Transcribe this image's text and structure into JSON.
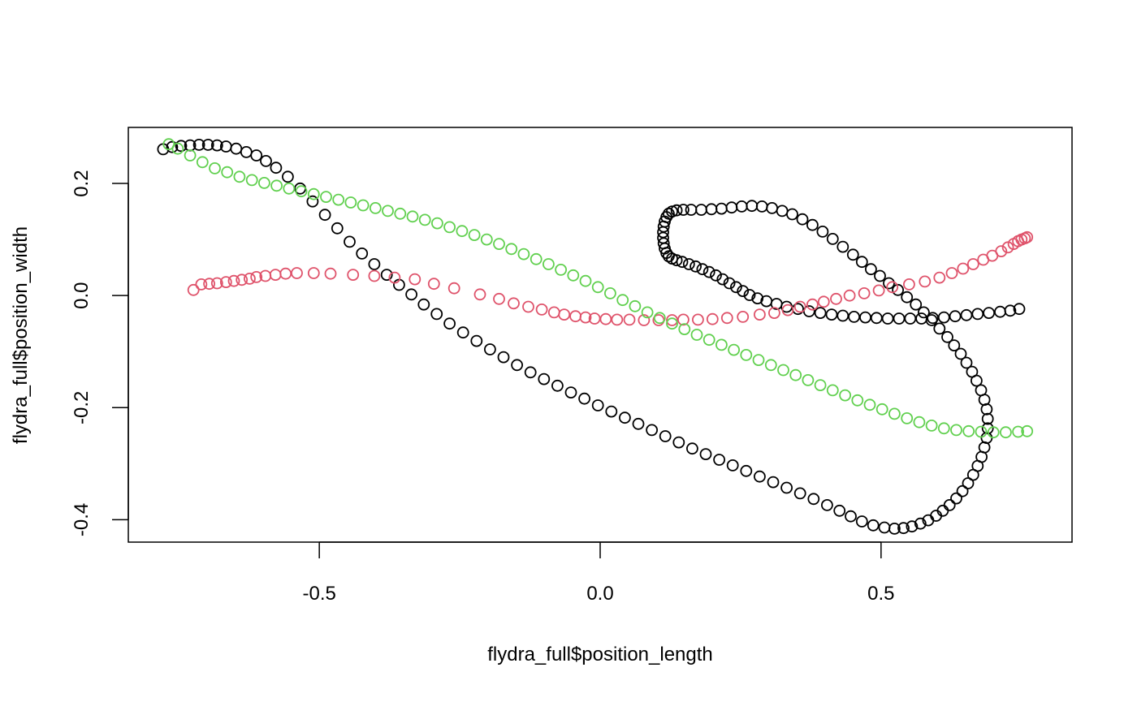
{
  "chart_data": {
    "type": "scatter",
    "title": "",
    "xlabel": "flydra_full$position_length",
    "ylabel": "flydra_full$position_width",
    "xlim": [
      -0.84,
      0.84
    ],
    "ylim": [
      -0.44,
      0.3
    ],
    "xticks": [
      -0.5,
      0.0,
      0.5
    ],
    "xtick_labels": [
      "-0.5",
      "0.0",
      "0.5"
    ],
    "yticks": [
      -0.4,
      -0.2,
      0.0,
      0.2
    ],
    "ytick_labels": [
      "-0.4",
      "-0.2",
      "0.0",
      "0.2"
    ],
    "marker": "open-circle",
    "grid": false,
    "legend": "none",
    "series": [
      {
        "color": "#000000",
        "points": [
          [
            -0.778,
            0.261
          ],
          [
            -0.762,
            0.265
          ],
          [
            -0.746,
            0.267
          ],
          [
            -0.73,
            0.268
          ],
          [
            -0.714,
            0.269
          ],
          [
            -0.698,
            0.269
          ],
          [
            -0.682,
            0.268
          ],
          [
            -0.666,
            0.266
          ],
          [
            -0.648,
            0.262
          ],
          [
            -0.63,
            0.256
          ],
          [
            -0.612,
            0.25
          ],
          [
            -0.595,
            0.24
          ],
          [
            -0.577,
            0.228
          ],
          [
            -0.556,
            0.212
          ],
          [
            -0.534,
            0.191
          ],
          [
            -0.512,
            0.168
          ],
          [
            -0.49,
            0.144
          ],
          [
            -0.468,
            0.12
          ],
          [
            -0.446,
            0.096
          ],
          [
            -0.424,
            0.075
          ],
          [
            -0.402,
            0.056
          ],
          [
            -0.38,
            0.037
          ],
          [
            -0.358,
            0.019
          ],
          [
            -0.336,
            0.002
          ],
          [
            -0.314,
            -0.016
          ],
          [
            -0.291,
            -0.033
          ],
          [
            -0.268,
            -0.05
          ],
          [
            -0.244,
            -0.066
          ],
          [
            -0.22,
            -0.081
          ],
          [
            -0.196,
            -0.096
          ],
          [
            -0.172,
            -0.11
          ],
          [
            -0.148,
            -0.124
          ],
          [
            -0.124,
            -0.137
          ],
          [
            -0.1,
            -0.149
          ],
          [
            -0.076,
            -0.161
          ],
          [
            -0.052,
            -0.173
          ],
          [
            -0.028,
            -0.184
          ],
          [
            -0.004,
            -0.196
          ],
          [
            0.02,
            -0.207
          ],
          [
            0.044,
            -0.218
          ],
          [
            0.068,
            -0.229
          ],
          [
            0.092,
            -0.24
          ],
          [
            0.116,
            -0.251
          ],
          [
            0.14,
            -0.262
          ],
          [
            0.164,
            -0.273
          ],
          [
            0.188,
            -0.283
          ],
          [
            0.212,
            -0.293
          ],
          [
            0.236,
            -0.303
          ],
          [
            0.26,
            -0.313
          ],
          [
            0.284,
            -0.323
          ],
          [
            0.308,
            -0.333
          ],
          [
            0.332,
            -0.343
          ],
          [
            0.356,
            -0.353
          ],
          [
            0.38,
            -0.363
          ],
          [
            0.404,
            -0.374
          ],
          [
            0.426,
            -0.384
          ],
          [
            0.446,
            -0.394
          ],
          [
            0.466,
            -0.403
          ],
          [
            0.486,
            -0.41
          ],
          [
            0.506,
            -0.414
          ],
          [
            0.524,
            -0.416
          ],
          [
            0.54,
            -0.415
          ],
          [
            0.555,
            -0.412
          ],
          [
            0.57,
            -0.407
          ],
          [
            0.584,
            -0.401
          ],
          [
            0.598,
            -0.393
          ],
          [
            0.61,
            -0.384
          ],
          [
            0.622,
            -0.374
          ],
          [
            0.634,
            -0.362
          ],
          [
            0.645,
            -0.349
          ],
          [
            0.655,
            -0.335
          ],
          [
            0.664,
            -0.32
          ],
          [
            0.672,
            -0.304
          ],
          [
            0.679,
            -0.288
          ],
          [
            0.684,
            -0.271
          ],
          [
            0.688,
            -0.254
          ],
          [
            0.69,
            -0.237
          ],
          [
            0.69,
            -0.22
          ],
          [
            0.688,
            -0.203
          ],
          [
            0.684,
            -0.186
          ],
          [
            0.678,
            -0.169
          ],
          [
            0.67,
            -0.152
          ],
          [
            0.662,
            -0.136
          ],
          [
            0.652,
            -0.12
          ],
          [
            0.642,
            -0.104
          ],
          [
            0.63,
            -0.089
          ],
          [
            0.618,
            -0.074
          ],
          [
            0.604,
            -0.059
          ],
          [
            0.59,
            -0.044
          ],
          [
            0.576,
            -0.03
          ],
          [
            0.562,
            -0.016
          ],
          [
            0.546,
            -0.003
          ],
          [
            0.53,
            0.01
          ],
          [
            0.514,
            0.022
          ],
          [
            0.498,
            0.035
          ],
          [
            0.482,
            0.047
          ],
          [
            0.466,
            0.06
          ],
          [
            0.45,
            0.073
          ],
          [
            0.432,
            0.087
          ],
          [
            0.414,
            0.101
          ],
          [
            0.396,
            0.114
          ],
          [
            0.378,
            0.126
          ],
          [
            0.36,
            0.136
          ],
          [
            0.342,
            0.145
          ],
          [
            0.324,
            0.151
          ],
          [
            0.306,
            0.156
          ],
          [
            0.288,
            0.159
          ],
          [
            0.27,
            0.16
          ],
          [
            0.252,
            0.159
          ],
          [
            0.234,
            0.157
          ],
          [
            0.216,
            0.155
          ],
          [
            0.198,
            0.154
          ],
          [
            0.18,
            0.153
          ],
          [
            0.162,
            0.153
          ],
          [
            0.148,
            0.153
          ],
          [
            0.136,
            0.152
          ],
          [
            0.128,
            0.15
          ],
          [
            0.122,
            0.146
          ],
          [
            0.118,
            0.14
          ],
          [
            0.115,
            0.132
          ],
          [
            0.113,
            0.123
          ],
          [
            0.112,
            0.113
          ],
          [
            0.112,
            0.103
          ],
          [
            0.113,
            0.093
          ],
          [
            0.115,
            0.084
          ],
          [
            0.118,
            0.076
          ],
          [
            0.122,
            0.07
          ],
          [
            0.128,
            0.066
          ],
          [
            0.136,
            0.063
          ],
          [
            0.146,
            0.06
          ],
          [
            0.158,
            0.056
          ],
          [
            0.17,
            0.052
          ],
          [
            0.182,
            0.047
          ],
          [
            0.194,
            0.042
          ],
          [
            0.206,
            0.036
          ],
          [
            0.218,
            0.029
          ],
          [
            0.23,
            0.022
          ],
          [
            0.242,
            0.015
          ],
          [
            0.254,
            0.008
          ],
          [
            0.266,
            0.001
          ],
          [
            0.28,
            -0.005
          ],
          [
            0.296,
            -0.01
          ],
          [
            0.314,
            -0.015
          ],
          [
            0.332,
            -0.02
          ],
          [
            0.352,
            -0.024
          ],
          [
            0.372,
            -0.028
          ],
          [
            0.392,
            -0.031
          ],
          [
            0.412,
            -0.034
          ],
          [
            0.432,
            -0.036
          ],
          [
            0.452,
            -0.038
          ],
          [
            0.472,
            -0.039
          ],
          [
            0.492,
            -0.04
          ],
          [
            0.512,
            -0.041
          ],
          [
            0.532,
            -0.041
          ],
          [
            0.552,
            -0.041
          ],
          [
            0.572,
            -0.041
          ],
          [
            0.592,
            -0.04
          ],
          [
            0.612,
            -0.039
          ],
          [
            0.632,
            -0.037
          ],
          [
            0.652,
            -0.035
          ],
          [
            0.672,
            -0.033
          ],
          [
            0.692,
            -0.031
          ],
          [
            0.712,
            -0.029
          ],
          [
            0.73,
            -0.027
          ],
          [
            0.746,
            -0.024
          ]
        ]
      },
      {
        "color": "#DF536B",
        "points": [
          [
            -0.724,
            0.01
          ],
          [
            -0.71,
            0.02
          ],
          [
            -0.696,
            0.021
          ],
          [
            -0.682,
            0.022
          ],
          [
            -0.666,
            0.024
          ],
          [
            -0.652,
            0.026
          ],
          [
            -0.638,
            0.028
          ],
          [
            -0.624,
            0.03
          ],
          [
            -0.612,
            0.033
          ],
          [
            -0.596,
            0.035
          ],
          [
            -0.578,
            0.037
          ],
          [
            -0.56,
            0.039
          ],
          [
            -0.54,
            0.04
          ],
          [
            -0.51,
            0.04
          ],
          [
            -0.48,
            0.039
          ],
          [
            -0.44,
            0.037
          ],
          [
            -0.402,
            0.035
          ],
          [
            -0.366,
            0.032
          ],
          [
            -0.33,
            0.029
          ],
          [
            -0.296,
            0.021
          ],
          [
            -0.26,
            0.013
          ],
          [
            -0.214,
            0.002
          ],
          [
            -0.18,
            -0.006
          ],
          [
            -0.154,
            -0.014
          ],
          [
            -0.128,
            -0.02
          ],
          [
            -0.104,
            -0.025
          ],
          [
            -0.082,
            -0.03
          ],
          [
            -0.064,
            -0.034
          ],
          [
            -0.044,
            -0.037
          ],
          [
            -0.026,
            -0.039
          ],
          [
            -0.01,
            -0.041
          ],
          [
            0.01,
            -0.042
          ],
          [
            0.03,
            -0.043
          ],
          [
            0.052,
            -0.043
          ],
          [
            0.078,
            -0.044
          ],
          [
            0.104,
            -0.044
          ],
          [
            0.128,
            -0.044
          ],
          [
            0.148,
            -0.043
          ],
          [
            0.174,
            -0.043
          ],
          [
            0.2,
            -0.042
          ],
          [
            0.226,
            -0.04
          ],
          [
            0.254,
            -0.038
          ],
          [
            0.284,
            -0.034
          ],
          [
            0.31,
            -0.031
          ],
          [
            0.334,
            -0.026
          ],
          [
            0.356,
            -0.02
          ],
          [
            0.378,
            -0.016
          ],
          [
            0.398,
            -0.011
          ],
          [
            0.42,
            -0.006
          ],
          [
            0.444,
            0.0
          ],
          [
            0.47,
            0.004
          ],
          [
            0.496,
            0.009
          ],
          [
            0.52,
            0.015
          ],
          [
            0.55,
            0.02
          ],
          [
            0.578,
            0.025
          ],
          [
            0.604,
            0.032
          ],
          [
            0.626,
            0.04
          ],
          [
            0.646,
            0.048
          ],
          [
            0.664,
            0.056
          ],
          [
            0.682,
            0.064
          ],
          [
            0.698,
            0.071
          ],
          [
            0.714,
            0.079
          ],
          [
            0.726,
            0.086
          ],
          [
            0.736,
            0.092
          ],
          [
            0.744,
            0.097
          ],
          [
            0.75,
            0.1
          ],
          [
            0.756,
            0.102
          ],
          [
            0.76,
            0.104
          ]
        ]
      },
      {
        "color": "#61D04F",
        "points": [
          [
            -0.768,
            0.27
          ],
          [
            -0.752,
            0.262
          ],
          [
            -0.73,
            0.25
          ],
          [
            -0.708,
            0.238
          ],
          [
            -0.686,
            0.227
          ],
          [
            -0.664,
            0.22
          ],
          [
            -0.642,
            0.212
          ],
          [
            -0.62,
            0.206
          ],
          [
            -0.598,
            0.201
          ],
          [
            -0.576,
            0.196
          ],
          [
            -0.554,
            0.191
          ],
          [
            -0.532,
            0.186
          ],
          [
            -0.51,
            0.181
          ],
          [
            -0.488,
            0.176
          ],
          [
            -0.466,
            0.171
          ],
          [
            -0.444,
            0.166
          ],
          [
            -0.422,
            0.161
          ],
          [
            -0.4,
            0.156
          ],
          [
            -0.378,
            0.151
          ],
          [
            -0.356,
            0.146
          ],
          [
            -0.334,
            0.141
          ],
          [
            -0.312,
            0.135
          ],
          [
            -0.29,
            0.129
          ],
          [
            -0.268,
            0.122
          ],
          [
            -0.246,
            0.115
          ],
          [
            -0.224,
            0.108
          ],
          [
            -0.202,
            0.1
          ],
          [
            -0.18,
            0.092
          ],
          [
            -0.158,
            0.083
          ],
          [
            -0.136,
            0.074
          ],
          [
            -0.114,
            0.065
          ],
          [
            -0.092,
            0.056
          ],
          [
            -0.07,
            0.046
          ],
          [
            -0.048,
            0.036
          ],
          [
            -0.026,
            0.026
          ],
          [
            -0.004,
            0.015
          ],
          [
            0.018,
            0.004
          ],
          [
            0.04,
            -0.008
          ],
          [
            0.062,
            -0.019
          ],
          [
            0.084,
            -0.03
          ],
          [
            0.106,
            -0.04
          ],
          [
            0.128,
            -0.05
          ],
          [
            0.15,
            -0.06
          ],
          [
            0.172,
            -0.07
          ],
          [
            0.194,
            -0.079
          ],
          [
            0.216,
            -0.088
          ],
          [
            0.238,
            -0.097
          ],
          [
            0.26,
            -0.106
          ],
          [
            0.282,
            -0.115
          ],
          [
            0.304,
            -0.124
          ],
          [
            0.326,
            -0.133
          ],
          [
            0.348,
            -0.142
          ],
          [
            0.37,
            -0.151
          ],
          [
            0.392,
            -0.16
          ],
          [
            0.414,
            -0.169
          ],
          [
            0.436,
            -0.178
          ],
          [
            0.458,
            -0.187
          ],
          [
            0.48,
            -0.195
          ],
          [
            0.502,
            -0.203
          ],
          [
            0.524,
            -0.211
          ],
          [
            0.546,
            -0.219
          ],
          [
            0.568,
            -0.226
          ],
          [
            0.59,
            -0.232
          ],
          [
            0.612,
            -0.237
          ],
          [
            0.634,
            -0.24
          ],
          [
            0.656,
            -0.242
          ],
          [
            0.678,
            -0.243
          ],
          [
            0.7,
            -0.244
          ],
          [
            0.722,
            -0.244
          ],
          [
            0.744,
            -0.243
          ],
          [
            0.76,
            -0.242
          ]
        ]
      }
    ]
  }
}
